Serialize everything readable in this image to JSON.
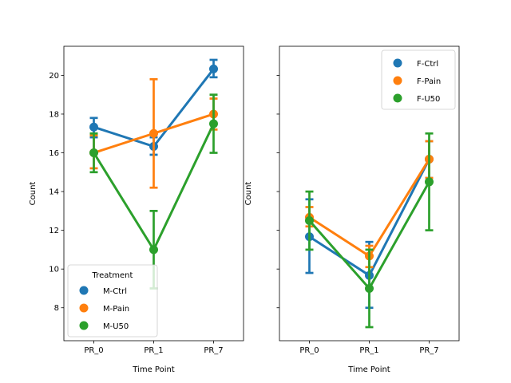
{
  "chart_data": [
    {
      "type": "line",
      "xlabel": "Time Point",
      "ylabel": "Count",
      "categories": [
        "PR_0",
        "PR_1",
        "PR_7"
      ],
      "ylim": [
        6.3,
        21.5
      ],
      "yticks": [
        8,
        10,
        12,
        14,
        16,
        18,
        20
      ],
      "legend": {
        "title": "Treatment",
        "placement": "lower-left"
      },
      "series": [
        {
          "name": "M-Ctrl",
          "color": "#1f77b4",
          "values": [
            17.33,
            16.33,
            20.33
          ],
          "err_low": [
            16.8,
            15.9,
            19.9
          ],
          "err_high": [
            17.8,
            16.8,
            20.8
          ]
        },
        {
          "name": "M-Pain",
          "color": "#ff7f0e",
          "values": [
            16.0,
            17.0,
            18.0
          ],
          "err_low": [
            15.2,
            14.2,
            17.2
          ],
          "err_high": [
            16.9,
            19.8,
            18.8
          ]
        },
        {
          "name": "M-U50",
          "color": "#2ca02c",
          "values": [
            16.0,
            11.0,
            17.5
          ],
          "err_low": [
            15.0,
            9.0,
            16.0
          ],
          "err_high": [
            17.0,
            13.0,
            19.0
          ]
        }
      ]
    },
    {
      "type": "line",
      "xlabel": "Time Point",
      "ylabel": "Count",
      "categories": [
        "PR_0",
        "PR_1",
        "PR_7"
      ],
      "ylim": [
        6.3,
        21.5
      ],
      "yticks": [
        8,
        10,
        12,
        14,
        16,
        18,
        20
      ],
      "ytick_labels_visible": false,
      "legend": {
        "title": "",
        "placement": "upper-right"
      },
      "series": [
        {
          "name": "F-Ctrl",
          "color": "#1f77b4",
          "values": [
            11.67,
            9.67,
            15.67
          ],
          "err_low": [
            9.8,
            8.0,
            14.7
          ],
          "err_high": [
            13.6,
            11.4,
            16.6
          ]
        },
        {
          "name": "F-Pain",
          "color": "#ff7f0e",
          "values": [
            12.67,
            10.67,
            15.67
          ],
          "err_low": [
            12.2,
            10.1,
            14.7
          ],
          "err_high": [
            13.2,
            11.2,
            16.6
          ]
        },
        {
          "name": "F-U50",
          "color": "#2ca02c",
          "values": [
            12.5,
            9.0,
            14.5
          ],
          "err_low": [
            11.0,
            7.0,
            12.0
          ],
          "err_high": [
            14.0,
            11.0,
            17.0
          ]
        }
      ]
    }
  ]
}
